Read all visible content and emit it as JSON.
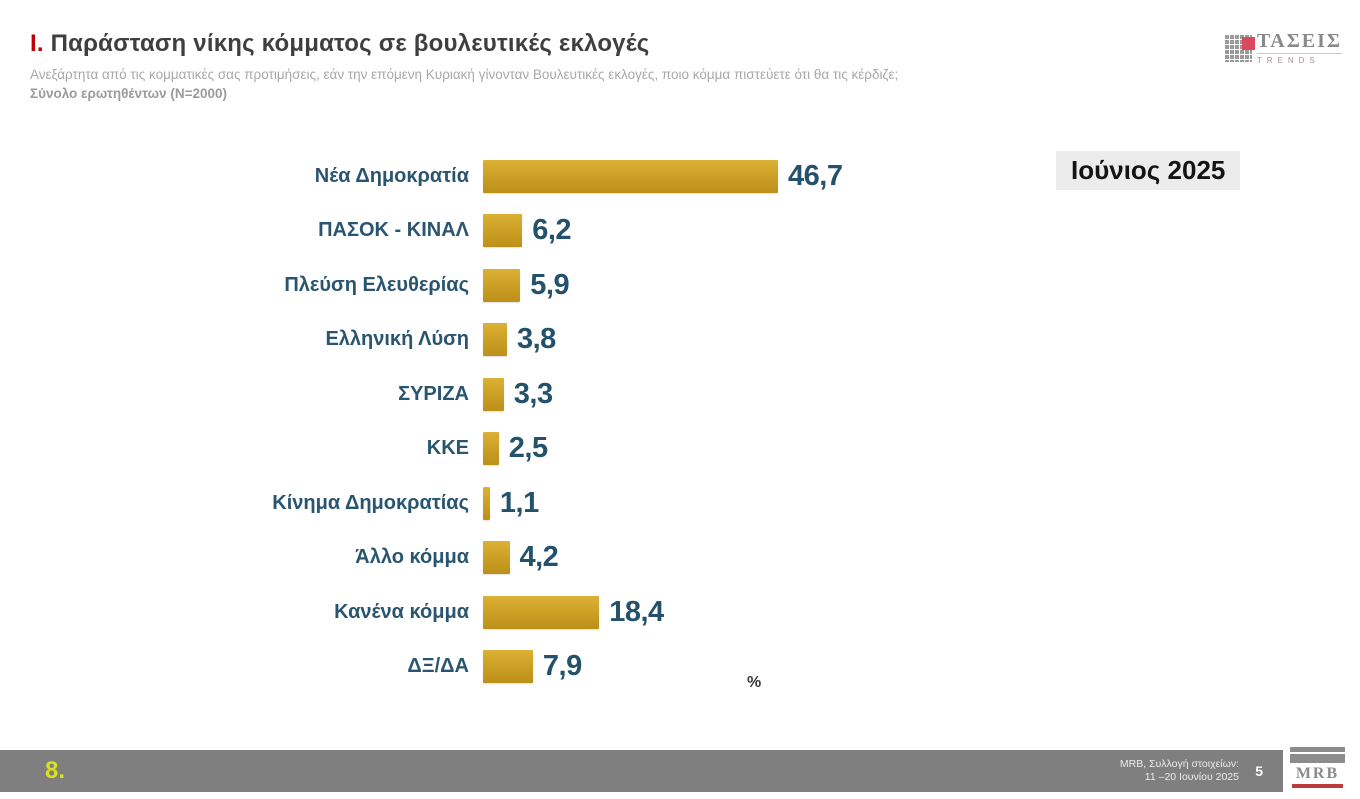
{
  "header": {
    "title_num": "Ι.",
    "title_text": "Παράσταση νίκης κόμματος σε βουλευτικές εκλογές",
    "subtitle": "Ανεξάρτητα από τις κομματικές σας προτιμήσεις, εάν την επόμενη Κυριακή γίνονταν Βουλευτικές εκλογές, ποιο κόμμα πιστεύετε ότι θα τις κέρδιζε;",
    "sample": "Σύνολο ερωτηθέντων (N=2000)"
  },
  "badge": {
    "label": "Ιούνιος 2025"
  },
  "logos": {
    "trends": {
      "name": "ΤΑΣΕΙΣ",
      "sub": "TRENDS"
    },
    "mrb": {
      "name": "MRB"
    }
  },
  "chart_data": {
    "type": "bar",
    "orientation": "horizontal",
    "categories": [
      "Νέα Δημοκρατία",
      "ΠΑΣΟΚ - ΚΙΝΑΛ",
      "Πλεύση Ελευθερίας",
      "Ελληνική Λύση",
      "ΣΥΡΙΖΑ",
      "ΚΚΕ",
      "Κίνημα Δημοκρατίας",
      "Άλλο κόμμα",
      "Κανένα κόμμα",
      "ΔΞ/ΔΑ"
    ],
    "values": [
      46.7,
      6.2,
      5.9,
      3.8,
      3.3,
      2.5,
      1.1,
      4.2,
      18.4,
      7.9
    ],
    "value_labels": [
      "46,7",
      "6,2",
      "5,9",
      "3,8",
      "3,3",
      "2,5",
      "1,1",
      "4,2",
      "18,4",
      "7,9"
    ],
    "unit_label": "%",
    "xlim": [
      0,
      50
    ],
    "bar_color": "#CDA227",
    "label_color": "#2A5570",
    "data_labels": true,
    "grid": false,
    "legend": false
  },
  "footer": {
    "page_left": "8.",
    "source_line1": "MRB, Συλλογή στοιχείων:",
    "source_line2": "11 –20 Ιουνίου 2025",
    "page_right": "5"
  }
}
